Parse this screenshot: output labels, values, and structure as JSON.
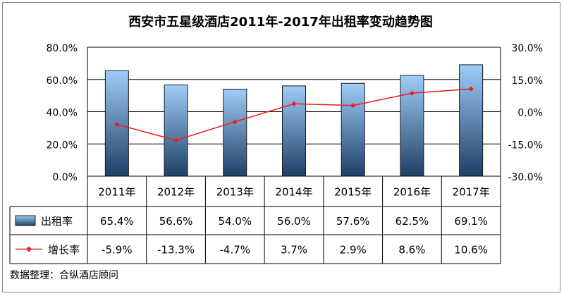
{
  "chart_data": {
    "type": "bar+line",
    "title": "西安市五星级酒店2011年-2017年出租率变动趋势图",
    "categories": [
      "2011年",
      "2012年",
      "2013年",
      "2014年",
      "2015年",
      "2016年",
      "2017年"
    ],
    "series": [
      {
        "name": "出租率",
        "kind": "bar",
        "axis": "left",
        "values": [
          65.4,
          56.6,
          54.0,
          56.0,
          57.6,
          62.5,
          69.1
        ],
        "labels": [
          "65.4%",
          "56.6%",
          "54.0%",
          "56.0%",
          "57.6%",
          "62.5%",
          "69.1%"
        ],
        "color_top": "#9ecdf7",
        "color_bottom": "#1f3f66"
      },
      {
        "name": "增长率",
        "kind": "line",
        "axis": "right",
        "values": [
          -5.9,
          -13.3,
          -4.7,
          3.7,
          2.9,
          8.6,
          10.6
        ],
        "labels": [
          "-5.9%",
          "-13.3%",
          "-4.7%",
          "3.7%",
          "2.9%",
          "8.6%",
          "10.6%"
        ],
        "color": "#ee1c1c"
      }
    ],
    "y_left": {
      "min": 0,
      "max": 80,
      "ticks": [
        0,
        20,
        40,
        60,
        80
      ],
      "tick_labels": [
        "0.0%",
        "20.0%",
        "40.0%",
        "60.0%",
        "80.0%"
      ]
    },
    "y_right": {
      "min": -30,
      "max": 30,
      "ticks": [
        -30,
        -15,
        0,
        15,
        30
      ],
      "tick_labels": [
        "-30.0%",
        "-15.0%",
        "0.0%",
        "15.0%",
        "30.0%"
      ]
    },
    "grid": "horizontal",
    "legend": "data-table",
    "source_note": "数据整理：合纵酒店顾问"
  }
}
